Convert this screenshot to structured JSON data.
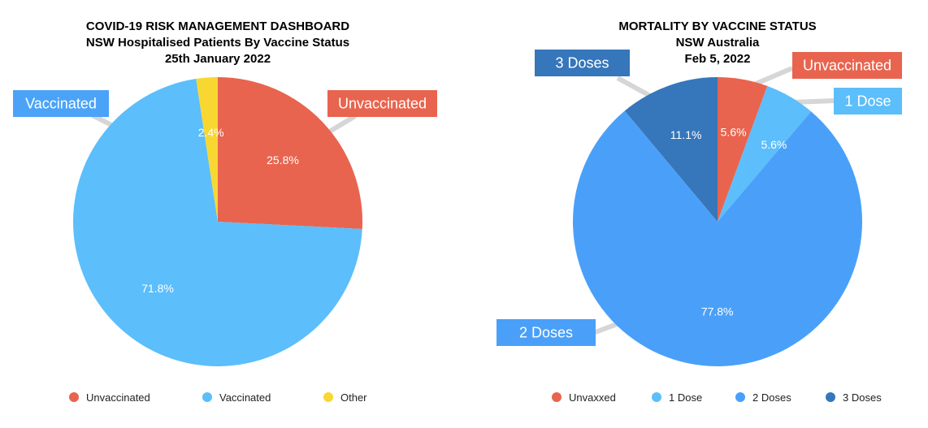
{
  "chart_data": [
    {
      "type": "pie",
      "title": "COVID-19 RISK MANAGEMENT DASHBOARD",
      "subtitle": "NSW Hospitalised Patients By Vaccine Status",
      "date": "25th January 2022",
      "slices": [
        {
          "name": "Unvaccinated",
          "value": 25.8,
          "label": "25.8%",
          "color": "#E8644F"
        },
        {
          "name": "Vaccinated",
          "value": 71.8,
          "label": "71.8%",
          "color": "#5CBEFB"
        },
        {
          "name": "Other",
          "value": 2.4,
          "label": "2.4%",
          "color": "#F8D733"
        }
      ],
      "callouts": [
        {
          "text": "Unvaccinated",
          "color": "#E8644F"
        },
        {
          "text": "Vaccinated",
          "color": "#4BA3F8"
        }
      ],
      "legend": {
        "position": "bottom",
        "items": [
          "Unvaccinated",
          "Vaccinated",
          "Other"
        ]
      }
    },
    {
      "type": "pie",
      "title": "MORTALITY BY VACCINE STATUS",
      "subtitle": "NSW Australia",
      "date": "Feb 5, 2022",
      "slices": [
        {
          "name": "Unvaxxed",
          "value": 5.6,
          "label": "5.6%",
          "color": "#E8644F"
        },
        {
          "name": "1 Dose",
          "value": 5.6,
          "label": "5.6%",
          "color": "#5CBEFB"
        },
        {
          "name": "2 Doses",
          "value": 77.8,
          "label": "77.8%",
          "color": "#4AA0F9"
        },
        {
          "name": "3 Doses",
          "value": 11.1,
          "label": "11.1%",
          "color": "#3676BB"
        }
      ],
      "callouts": [
        {
          "text": "Unvaccinated",
          "color": "#E8644F"
        },
        {
          "text": "1 Dose",
          "color": "#5CBEFB"
        },
        {
          "text": "2 Doses",
          "color": "#4AA0F9"
        },
        {
          "text": "3 Doses",
          "color": "#3676BB"
        }
      ],
      "legend": {
        "position": "bottom",
        "items": [
          "Unvaxxed",
          "1 Dose",
          "2 Doses",
          "3 Doses"
        ]
      }
    }
  ]
}
